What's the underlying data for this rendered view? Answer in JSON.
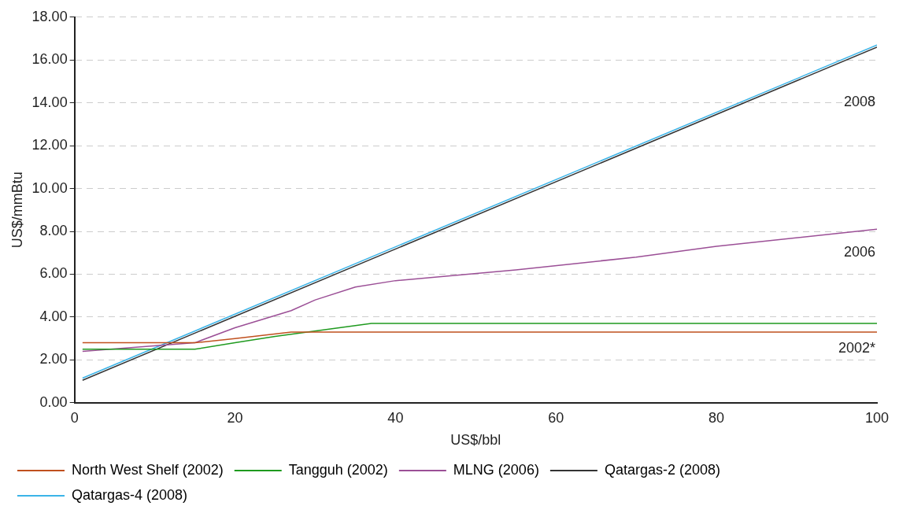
{
  "chart_data": {
    "type": "line",
    "xlabel": "US$/bbl",
    "ylabel": "US$/mmBtu",
    "xlim": [
      0,
      100
    ],
    "xticks": [
      0,
      20,
      40,
      60,
      80,
      100
    ],
    "ylim": [
      0,
      18
    ],
    "yticks": [
      {
        "value": 0,
        "label": "0.00"
      },
      {
        "value": 2,
        "label": "2.00"
      },
      {
        "value": 4,
        "label": "4.00"
      },
      {
        "value": 6,
        "label": "6.00"
      },
      {
        "value": 8,
        "label": "8.00"
      },
      {
        "value": 10,
        "label": "10.00"
      },
      {
        "value": 12,
        "label": "12.00"
      },
      {
        "value": 14,
        "label": "14.00"
      },
      {
        "value": 16,
        "label": "16.00"
      },
      {
        "value": 18,
        "label": "18.00"
      }
    ],
    "grid": "y",
    "legend": "bottom",
    "marker": "none",
    "series": [
      {
        "name": "North West Shelf (2002)",
        "color": "#c0501e",
        "x": [
          1,
          15,
          20,
          27,
          100
        ],
        "values": [
          2.8,
          2.8,
          3.0,
          3.3,
          3.3
        ]
      },
      {
        "name": "Tangguh (2002)",
        "color": "#1f9a1f",
        "x": [
          1,
          15,
          20,
          25,
          33,
          37,
          100
        ],
        "values": [
          2.5,
          2.5,
          2.8,
          3.1,
          3.5,
          3.7,
          3.7
        ]
      },
      {
        "name": "MLNG (2006)",
        "color": "#9b4f96",
        "x": [
          1,
          15,
          20,
          27,
          30,
          35,
          40,
          55,
          70,
          80,
          100
        ],
        "values": [
          2.4,
          2.8,
          3.5,
          4.3,
          4.8,
          5.4,
          5.7,
          6.2,
          6.8,
          7.3,
          8.1
        ]
      },
      {
        "name": "Qatargas-2 (2008)",
        "color": "#333333",
        "x": [
          1,
          100
        ],
        "values": [
          1.05,
          16.6
        ]
      },
      {
        "name": "Qatargas-4 (2008)",
        "color": "#3bb4e8",
        "x": [
          1,
          100
        ],
        "values": [
          1.15,
          16.7
        ]
      }
    ],
    "annotations": [
      "2008",
      "2006",
      "2002*"
    ]
  }
}
